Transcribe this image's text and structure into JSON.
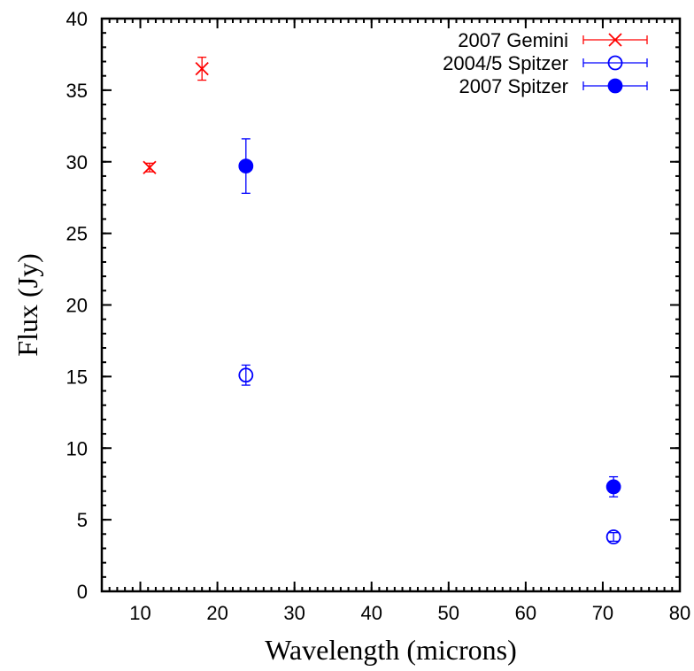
{
  "chart_data": {
    "type": "scatter",
    "title": "",
    "xlabel": "Wavelength (microns)",
    "ylabel": "Flux (Jy)",
    "xlim": [
      5,
      80
    ],
    "ylim": [
      0,
      40
    ],
    "xticks": [
      10,
      20,
      30,
      40,
      50,
      60,
      70,
      80
    ],
    "yticks": [
      0,
      5,
      10,
      15,
      20,
      25,
      30,
      35,
      40
    ],
    "x_minor_step": 1,
    "y_minor_step": 1,
    "grid": false,
    "legend_position": "top-right",
    "series": [
      {
        "name": "2007 Gemini",
        "color": "#ff0000",
        "marker": "x",
        "points": [
          {
            "x": 11.2,
            "y": 29.6,
            "yerr": 0.3
          },
          {
            "x": 18.0,
            "y": 36.5,
            "yerr": 0.8
          }
        ]
      },
      {
        "name": "2004/5 Spitzer",
        "color": "#0000ff",
        "marker": "open-circle",
        "points": [
          {
            "x": 23.7,
            "y": 15.1,
            "yerr": 0.7
          },
          {
            "x": 71.4,
            "y": 3.8,
            "yerr": 0.3
          }
        ]
      },
      {
        "name": "2007 Spitzer",
        "color": "#0000ff",
        "marker": "filled-circle",
        "points": [
          {
            "x": 23.7,
            "y": 29.7,
            "yerr": 1.9
          },
          {
            "x": 71.4,
            "y": 7.3,
            "yerr": 0.7
          }
        ]
      }
    ]
  }
}
